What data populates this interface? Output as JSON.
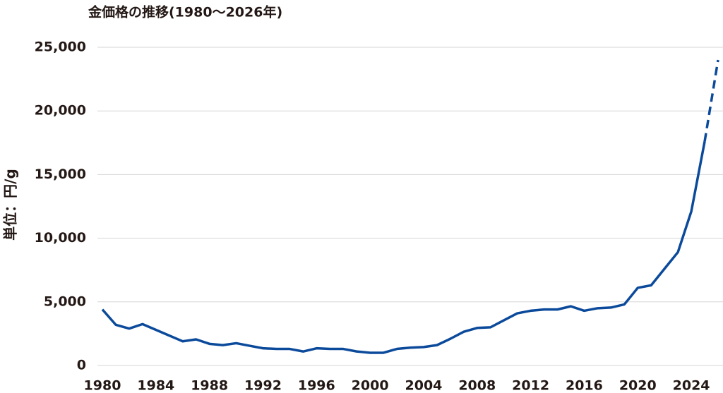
{
  "chart_data": {
    "type": "line",
    "title": "金価格の推移(1980〜2026年)",
    "y_label": "単位：円/g",
    "x": [
      1980,
      1981,
      1982,
      1983,
      1984,
      1985,
      1986,
      1987,
      1988,
      1989,
      1990,
      1991,
      1992,
      1993,
      1994,
      1995,
      1996,
      1997,
      1998,
      1999,
      2000,
      2001,
      2002,
      2003,
      2004,
      2005,
      2006,
      2007,
      2008,
      2009,
      2010,
      2011,
      2012,
      2013,
      2014,
      2015,
      2016,
      2017,
      2018,
      2019,
      2020,
      2021,
      2022,
      2023,
      2024,
      2025,
      2026
    ],
    "series": [
      {
        "color": "#0b4a9b",
        "dashed": false,
        "values": [
          4400,
          3200,
          2900,
          3250,
          2800,
          2350,
          1900,
          2050,
          1700,
          1600,
          1750,
          1550,
          1350,
          1300,
          1300,
          1100,
          1350,
          1300,
          1300,
          1100,
          1000,
          1000,
          1300,
          1400,
          1450,
          1600,
          2100,
          2650,
          2950,
          3000,
          3550,
          4100,
          4300,
          4400,
          4400,
          4650,
          4300,
          4500,
          4550,
          4800,
          6100,
          6300,
          7600,
          8900,
          12100,
          17600,
          null
        ]
      },
      {
        "color": "#0b4a9b",
        "dashed": true,
        "values": [
          null,
          null,
          null,
          null,
          null,
          null,
          null,
          null,
          null,
          null,
          null,
          null,
          null,
          null,
          null,
          null,
          null,
          null,
          null,
          null,
          null,
          null,
          null,
          null,
          null,
          null,
          null,
          null,
          null,
          null,
          null,
          null,
          null,
          null,
          null,
          null,
          null,
          null,
          null,
          null,
          null,
          null,
          null,
          null,
          null,
          17600,
          24000
        ]
      }
    ],
    "xlim": [
      1980,
      2026
    ],
    "xticks": [
      1980,
      1984,
      1988,
      1992,
      1996,
      2000,
      2004,
      2008,
      2012,
      2016,
      2020,
      2024
    ],
    "ylim": [
      0,
      25000
    ],
    "yticks": [
      0,
      {
        "value": 5000,
        "label": "5,000"
      },
      {
        "value": 10000,
        "label": "10,000"
      },
      {
        "value": 15000,
        "label": "15,000"
      },
      {
        "value": 20000,
        "label": "20,000"
      },
      {
        "value": 25000,
        "label": "25,000"
      }
    ],
    "grid": true
  }
}
